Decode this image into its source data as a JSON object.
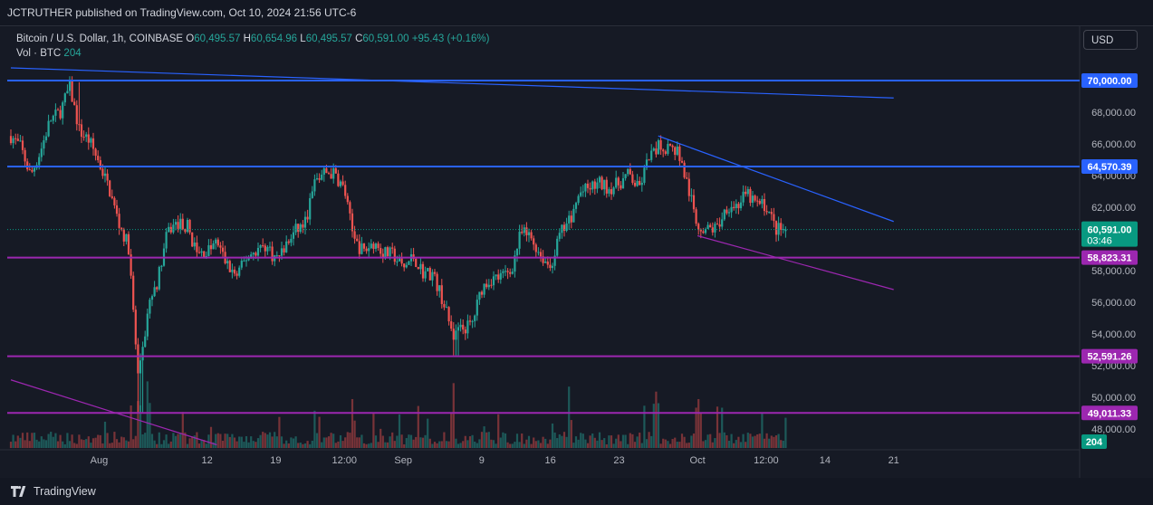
{
  "header": {
    "publisher_line": "JCTRUTHER published on TradingView.com, Oct 10, 2024 21:56 UTC-6"
  },
  "legend": {
    "symbol": "Bitcoin / U.S. Dollar, 1h, COINBASE",
    "open_label": "O",
    "open_value": "60,495.57",
    "high_label": "H",
    "high_value": "60,654.96",
    "low_label": "L",
    "low_value": "60,495.57",
    "close_label": "C",
    "close_value": "60,591.00",
    "change": "+95.43 (+0.16%)",
    "volume_label": "Vol · BTC",
    "volume_value": "204"
  },
  "toolbar": {
    "currency_button": "USD"
  },
  "footer": {
    "brand": "TradingView"
  },
  "colors": {
    "background": "#161a25",
    "up": "#26a69a",
    "down": "#ef5350",
    "resistance": "#2962ff",
    "support": "#9c27b0",
    "trendline_blue": "#2962ff",
    "trendline_purple": "#9c27b0",
    "last_price_tag": "#089981"
  },
  "chart_data": {
    "type": "candlestick",
    "title": "Bitcoin / U.S. Dollar, 1h, COINBASE",
    "y_scale": "linear",
    "ylim": [
      46800,
      71800
    ],
    "y_ticks": [
      48000,
      50000,
      52000,
      54000,
      56000,
      58000,
      60000,
      62000,
      64000,
      66000,
      68000
    ],
    "y_tick_labels": [
      "48,000.00",
      "50,000.00",
      "52,000.00",
      "54,000.00",
      "56,000.00",
      "58,000.00",
      "60,000.00",
      "62,000.00",
      "64,000.00",
      "66,000.00",
      "68,000.00"
    ],
    "x_range": [
      "2024-07-23",
      "2024-10-23"
    ],
    "x_ticks": [
      {
        "date": "2024-08-01",
        "label": "Aug"
      },
      {
        "date": "2024-08-12",
        "label": "12"
      },
      {
        "date": "2024-08-19",
        "label": "19"
      },
      {
        "date": "2024-08-26",
        "label": "12:00"
      },
      {
        "date": "2024-09-01",
        "label": "Sep"
      },
      {
        "date": "2024-09-09",
        "label": "9"
      },
      {
        "date": "2024-09-16",
        "label": "16"
      },
      {
        "date": "2024-09-23",
        "label": "23"
      },
      {
        "date": "2024-10-01",
        "label": "Oct"
      },
      {
        "date": "2024-10-08",
        "label": "12:00"
      },
      {
        "date": "2024-10-14",
        "label": "14"
      },
      {
        "date": "2024-10-21",
        "label": "21"
      }
    ],
    "price_path": [
      [
        "2024-07-23",
        66500
      ],
      [
        "2024-07-24",
        65800
      ],
      [
        "2024-07-25",
        64000
      ],
      [
        "2024-07-26",
        65500
      ],
      [
        "2024-07-27",
        67500
      ],
      [
        "2024-07-28",
        68000
      ],
      [
        "2024-07-29",
        69600
      ],
      [
        "2024-07-30",
        66800
      ],
      [
        "2024-07-31",
        66200
      ],
      [
        "2024-08-01",
        64800
      ],
      [
        "2024-08-02",
        63200
      ],
      [
        "2024-08-03",
        61000
      ],
      [
        "2024-08-04",
        59500
      ],
      [
        "2024-08-05",
        51000
      ],
      [
        "2024-08-06",
        55500
      ],
      [
        "2024-08-07",
        57500
      ],
      [
        "2024-08-08",
        60500
      ],
      [
        "2024-08-09",
        61000
      ],
      [
        "2024-08-10",
        60800
      ],
      [
        "2024-08-11",
        59000
      ],
      [
        "2024-08-12",
        59200
      ],
      [
        "2024-08-13",
        59800
      ],
      [
        "2024-08-14",
        58400
      ],
      [
        "2024-08-15",
        57600
      ],
      [
        "2024-08-16",
        58800
      ],
      [
        "2024-08-17",
        59300
      ],
      [
        "2024-08-18",
        59600
      ],
      [
        "2024-08-19",
        58700
      ],
      [
        "2024-08-20",
        59500
      ],
      [
        "2024-08-21",
        60500
      ],
      [
        "2024-08-22",
        61000
      ],
      [
        "2024-08-23",
        63600
      ],
      [
        "2024-08-24",
        64200
      ],
      [
        "2024-08-25",
        64100
      ],
      [
        "2024-08-26",
        63100
      ],
      [
        "2024-08-27",
        59800
      ],
      [
        "2024-08-28",
        59200
      ],
      [
        "2024-08-29",
        59800
      ],
      [
        "2024-08-30",
        59100
      ],
      [
        "2024-08-31",
        59000
      ],
      [
        "2024-09-01",
        58100
      ],
      [
        "2024-09-02",
        58900
      ],
      [
        "2024-09-03",
        57900
      ],
      [
        "2024-09-04",
        57800
      ],
      [
        "2024-09-05",
        56200
      ],
      [
        "2024-09-06",
        54000
      ],
      [
        "2024-09-07",
        54300
      ],
      [
        "2024-09-08",
        54600
      ],
      [
        "2024-09-09",
        56900
      ],
      [
        "2024-09-10",
        57500
      ],
      [
        "2024-09-11",
        57600
      ],
      [
        "2024-09-12",
        58000
      ],
      [
        "2024-09-13",
        60400
      ],
      [
        "2024-09-14",
        60100
      ],
      [
        "2024-09-15",
        59000
      ],
      [
        "2024-09-16",
        58200
      ],
      [
        "2024-09-17",
        60300
      ],
      [
        "2024-09-18",
        61200
      ],
      [
        "2024-09-19",
        62900
      ],
      [
        "2024-09-20",
        63200
      ],
      [
        "2024-09-21",
        63500
      ],
      [
        "2024-09-22",
        63200
      ],
      [
        "2024-09-23",
        63500
      ],
      [
        "2024-09-24",
        64100
      ],
      [
        "2024-09-25",
        63100
      ],
      [
        "2024-09-26",
        65000
      ],
      [
        "2024-09-27",
        65800
      ],
      [
        "2024-09-28",
        65800
      ],
      [
        "2024-09-29",
        65600
      ],
      [
        "2024-09-30",
        63300
      ],
      [
        "2024-10-01",
        60800
      ],
      [
        "2024-10-02",
        60600
      ],
      [
        "2024-10-03",
        60700
      ],
      [
        "2024-10-04",
        62100
      ],
      [
        "2024-10-05",
        62100
      ],
      [
        "2024-10-06",
        62800
      ],
      [
        "2024-10-07",
        62200
      ],
      [
        "2024-10-08",
        62100
      ],
      [
        "2024-10-09",
        60600
      ],
      [
        "2024-10-10",
        60591
      ]
    ],
    "horizontal_levels": [
      {
        "price": 70000.0,
        "label": "70,000.00",
        "color": "#2962ff"
      },
      {
        "price": 64570.39,
        "label": "64,570.39",
        "color": "#2962ff"
      },
      {
        "price": 58823.31,
        "label": "58,823.31",
        "color": "#9c27b0"
      },
      {
        "price": 52591.26,
        "label": "52,591.26",
        "color": "#9c27b0"
      },
      {
        "price": 49011.33,
        "label": "49,011.33",
        "color": "#9c27b0"
      }
    ],
    "trendlines": [
      {
        "start": [
          "2024-07-23",
          70800
        ],
        "end": [
          "2024-10-21",
          68900
        ],
        "color": "#2962ff"
      },
      {
        "start": [
          "2024-09-27",
          66500
        ],
        "end": [
          "2024-10-21",
          61100
        ],
        "color": "#2962ff"
      },
      {
        "start": [
          "2024-10-01",
          60200
        ],
        "end": [
          "2024-10-21",
          56800
        ],
        "color": "#9c27b0"
      },
      {
        "start": [
          "2024-07-23",
          51100
        ],
        "end": [
          "2024-08-13",
          47000
        ],
        "color": "#9c27b0"
      }
    ],
    "last_price": {
      "price": 60591.0,
      "label": "60,591.00",
      "countdown": "03:46"
    },
    "volume": {
      "last": "204",
      "spike_dates": [
        "2024-08-05",
        "2024-08-06",
        "2024-08-27",
        "2024-09-06",
        "2024-09-18",
        "2024-09-27",
        "2024-10-01",
        "2024-10-10"
      ]
    }
  }
}
